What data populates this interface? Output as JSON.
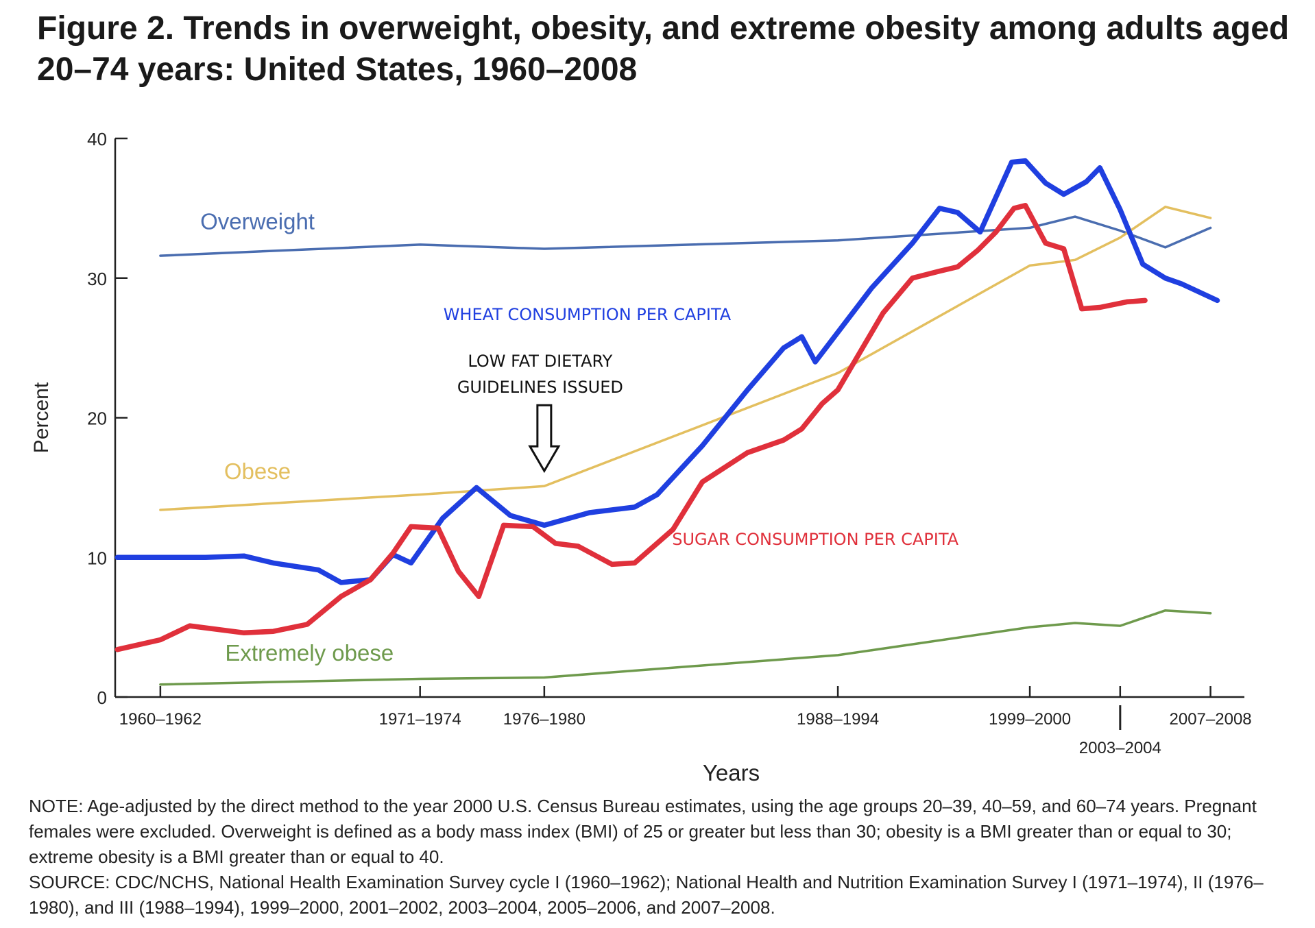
{
  "figure": {
    "title": "Figure 2. Trends in overweight, obesity, and extreme obesity among adults aged 20–74 years: United States, 1960–2008",
    "note": "NOTE: Age-adjusted by the direct method to the year 2000 U.S. Census Bureau estimates, using the age groups 20–39, 40–59, and 60–74 years. Pregnant females were excluded. Overweight is defined as a body mass index (BMI) of 25 or greater but less than 30; obesity is a BMI greater than or equal to 30; extreme obesity is a BMI greater than or equal to 40.",
    "source": "SOURCE: CDC/NCHS, National Health Examination Survey cycle I (1960–1962); National Health and Nutrition Examination Survey I (1971–1974), II (1976–1980), and III (1988–1994), 1999–2000, 2001–2002, 2003–2004, 2005–2006, and 2007–2008."
  },
  "chart_data": {
    "type": "line",
    "xlabel": "Years",
    "ylabel": "Percent",
    "ylim": [
      0,
      40
    ],
    "yticks": [
      0,
      10,
      20,
      30,
      40
    ],
    "xlim": [
      1959,
      2009
    ],
    "xticks": [
      {
        "label": "1960–1962",
        "x": 1961
      },
      {
        "label": "1971–1974",
        "x": 1972.5
      },
      {
        "label": "1976–1980",
        "x": 1978
      },
      {
        "label": "1988–1994",
        "x": 1991
      },
      {
        "label": "1999–2000",
        "x": 1999.5
      },
      {
        "label": "2003–2004",
        "x": 2003.5
      },
      {
        "label": "2007–2008",
        "x": 2007.5
      }
    ],
    "grid": false,
    "series": [
      {
        "name": "Overweight",
        "color": "#4a6db0",
        "x": [
          1961,
          1972.5,
          1978,
          1991,
          1999.5,
          2001.5,
          2003.5,
          2005.5,
          2007.5
        ],
        "values": [
          31.6,
          32.4,
          32.1,
          32.7,
          33.6,
          34.4,
          33.4,
          32.2,
          33.6
        ]
      },
      {
        "name": "Obese",
        "color": "#e3bf5f",
        "x": [
          1961,
          1972.5,
          1978,
          1991,
          1999.5,
          2001.5,
          2003.5,
          2005.5,
          2007.5
        ],
        "values": [
          13.4,
          14.5,
          15.1,
          23.2,
          30.9,
          31.3,
          32.9,
          35.1,
          34.3
        ]
      },
      {
        "name": "Extremely obese",
        "color": "#6e9a4c",
        "x": [
          1961,
          1972.5,
          1978,
          1991,
          1999.5,
          2001.5,
          2003.5,
          2005.5,
          2007.5
        ],
        "values": [
          0.9,
          1.3,
          1.4,
          3.0,
          5.0,
          5.3,
          5.1,
          6.2,
          6.0
        ]
      }
    ],
    "overlay_series": [
      {
        "name": "WHEAT CONSUMPTION PER CAPITA",
        "color": "#1f3fe0",
        "x": [
          1959.1,
          1963,
          1964.7,
          1966,
          1968,
          1969,
          1970.3,
          1971.3,
          1972.1,
          1973.5,
          1975,
          1976.5,
          1978,
          1980,
          1982,
          1983,
          1985,
          1987,
          1988.6,
          1989.4,
          1990,
          1992.5,
          1994.3,
          1995.5,
          1996.3,
          1997.3,
          1998.7,
          1999.3,
          2000.2,
          2001,
          2002,
          2002.6,
          2003.5,
          2004.5,
          2005.5,
          2006.2,
          2007.8
        ],
        "values": [
          10,
          10,
          10.1,
          9.6,
          9.1,
          8.2,
          8.4,
          10.2,
          9.6,
          12.8,
          15,
          13,
          12.3,
          13.2,
          13.6,
          14.5,
          18,
          22,
          25,
          25.8,
          24,
          29.3,
          32.5,
          35,
          34.7,
          33.3,
          38.3,
          38.4,
          36.8,
          36,
          36.9,
          37.9,
          34.9,
          31,
          30,
          29.6,
          28.4
        ]
      },
      {
        "name": "SUGAR CONSUMPTION PER CAPITA",
        "color": "#e0303b",
        "x": [
          1959.1,
          1961,
          1962.3,
          1964.7,
          1966,
          1967.5,
          1969,
          1970.3,
          1971.3,
          1972.1,
          1973.3,
          1974.2,
          1975.1,
          1976.2,
          1977.5,
          1978.5,
          1979.5,
          1981,
          1982,
          1983.7,
          1985,
          1987,
          1988.6,
          1989.4,
          1990.3,
          1991,
          1993,
          1994.3,
          1995.5,
          1996.3,
          1997.2,
          1998,
          1998.8,
          1999.3,
          2000.2,
          2001,
          2001.8,
          2002.6,
          2003.8,
          2004.6
        ],
        "values": [
          3.4,
          4.1,
          5.1,
          4.6,
          4.7,
          5.2,
          7.2,
          8.4,
          10.3,
          12.2,
          12.1,
          9,
          7.2,
          12.3,
          12.2,
          11,
          10.8,
          9.5,
          9.6,
          12,
          15.4,
          17.5,
          18.4,
          19.2,
          21,
          22,
          27.5,
          30,
          30.5,
          30.8,
          32,
          33.3,
          35,
          35.2,
          32.5,
          32.1,
          27.8,
          27.9,
          28.3,
          28.4
        ]
      }
    ],
    "annotations": [
      {
        "text_lines": [
          "LOW FAT DIETARY",
          "GUIDELINES ISSUED"
        ],
        "x": 1978,
        "y": 15.5
      }
    ],
    "series_labels": [
      {
        "text": "Overweight",
        "x": 1965.3,
        "y": 33.5,
        "color": "#4a6db0"
      },
      {
        "text": "Obese",
        "x": 1965.3,
        "y": 15.6,
        "color": "#e3bf5f"
      },
      {
        "text": "Extremely obese",
        "x": 1967.6,
        "y": 2.6,
        "color": "#6e9a4c"
      },
      {
        "text": "WHEAT CONSUMPTION PER CAPITA",
        "x": 1979.9,
        "y": 27,
        "color": "#1f3fe0"
      },
      {
        "text": "SUGAR CONSUMPTION PER CAPITA",
        "x": 1990,
        "y": 10.9,
        "color": "#e0303b"
      }
    ]
  }
}
